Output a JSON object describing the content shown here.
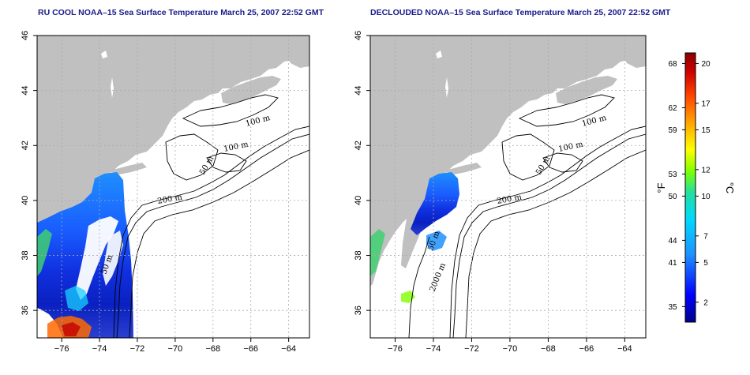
{
  "left_title": "RU COOL NOAA–15 Sea Surface Temperature March 25, 2007 22:52 GMT",
  "right_title": "DECLOUDED NOAA–15 Sea Surface Temperature March 25, 2007 22:52 GMT",
  "x_ticks": [
    "−76",
    "−74",
    "−72",
    "−70",
    "−68",
    "−66",
    "−64"
  ],
  "y_ticks": [
    "36",
    "38",
    "40",
    "42",
    "44",
    "46"
  ],
  "x_tick_values": [
    -76,
    -74,
    -72,
    -70,
    -68,
    -66,
    -64
  ],
  "y_tick_values": [
    36,
    38,
    40,
    42,
    44,
    46
  ],
  "lon_range": [
    -77.3,
    -62.9
  ],
  "lat_range": [
    35.0,
    46.0
  ],
  "left_depth_labels": [
    "100 m",
    "100 m",
    "50 m",
    "200 m",
    "50 m"
  ],
  "right_depth_labels": [
    "100 m",
    "100 m",
    "50 m",
    "200 m",
    "50 m",
    "2000 m"
  ],
  "colorbar": {
    "fahrenheit_unit": "°F",
    "celsius_unit": "°C",
    "fahrenheit_ticks": [
      "68",
      "62",
      "59",
      "53",
      "50",
      "44",
      "41",
      "35"
    ],
    "celsius_ticks": [
      "20",
      "17",
      "15",
      "12",
      "10",
      "7",
      "5",
      "2"
    ],
    "fahrenheit_values": [
      68,
      62,
      59,
      53,
      50,
      44,
      41,
      35
    ],
    "celsius_values": [
      20,
      17,
      15,
      12,
      10,
      7,
      5,
      2
    ],
    "range_c": [
      0.5,
      20.8
    ],
    "colors": [
      "#00008b",
      "#0000ff",
      "#1e90ff",
      "#00d8ff",
      "#20e0a0",
      "#7fff00",
      "#ffff00",
      "#ffa500",
      "#ff4500",
      "#cc0000",
      "#8b0000"
    ]
  },
  "colors": {
    "land": "#c0c0c0",
    "title": "#1a1a8c",
    "contour": "#000000",
    "grid": "#aaaaaa"
  }
}
